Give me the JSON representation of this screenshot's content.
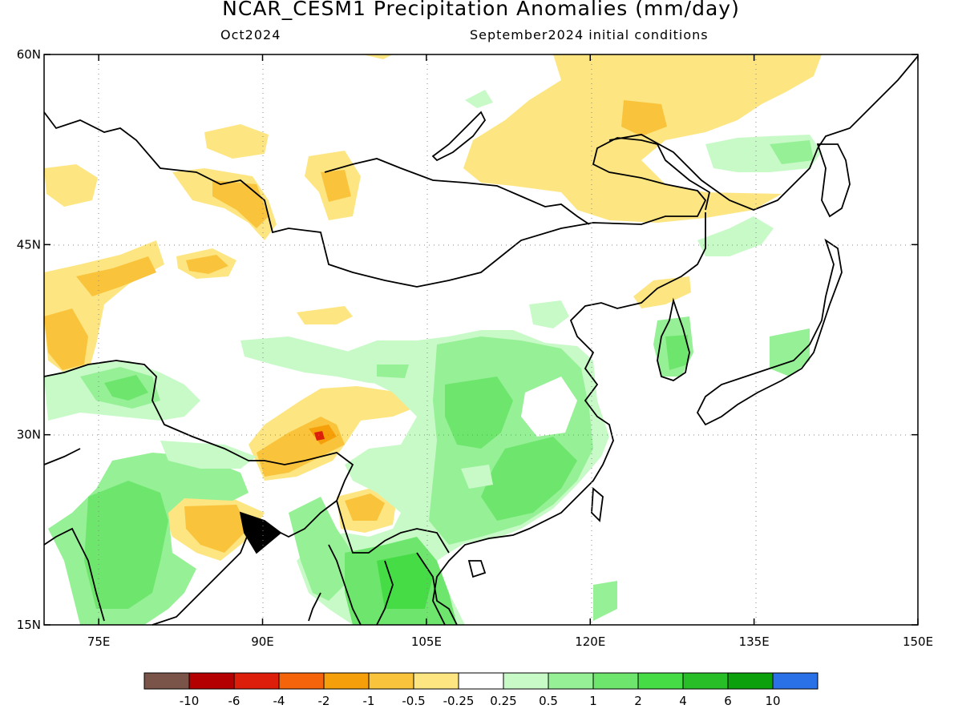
{
  "header": {
    "title": "NCAR_CESM1 Precipitation Anomalies (mm/day)",
    "valid_month": "Oct2024",
    "init_conditions": "September2024 initial conditions"
  },
  "map": {
    "lon_range": [
      70,
      150
    ],
    "lat_range": [
      15,
      60
    ],
    "lat_ticks": [
      {
        "value": 60,
        "label": "60N"
      },
      {
        "value": 45,
        "label": "45N"
      },
      {
        "value": 30,
        "label": "30N"
      },
      {
        "value": 15,
        "label": "15N"
      }
    ],
    "lon_ticks": [
      {
        "value": 75,
        "label": "75E"
      },
      {
        "value": 90,
        "label": "90E"
      },
      {
        "value": 105,
        "label": "105E"
      },
      {
        "value": 120,
        "label": "120E"
      },
      {
        "value": 135,
        "label": "135E"
      },
      {
        "value": 150,
        "label": "150E"
      }
    ],
    "grid": "dotted"
  },
  "colorbar": {
    "colors": [
      "#7a5448",
      "#b40000",
      "#dc1e0a",
      "#f5640a",
      "#f5a00a",
      "#fac33c",
      "#fde682",
      "#ffffff",
      "#c8fac8",
      "#96f096",
      "#6ee66e",
      "#46dc46",
      "#28be28",
      "#0ca00c",
      "#2a70e6"
    ],
    "labels": [
      "-10",
      "-6",
      "-4",
      "-2",
      "-1",
      "-0.5",
      "-0.25",
      "0.25",
      "0.5",
      "1",
      "2",
      "4",
      "6",
      "10"
    ]
  }
}
